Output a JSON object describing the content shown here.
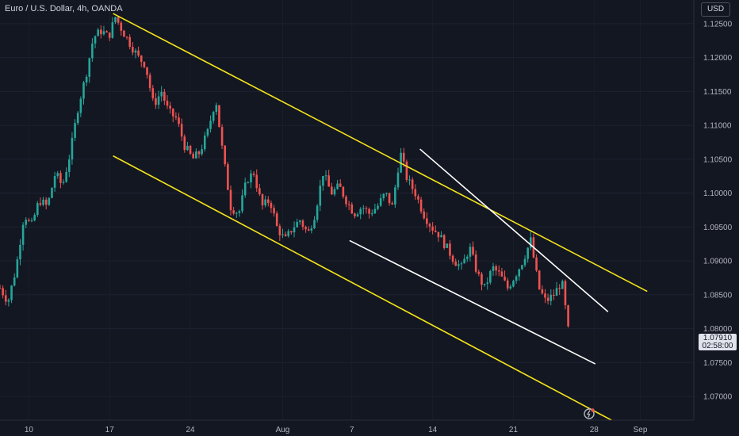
{
  "header": {
    "symbol_title": "Euro / U.S. Dollar, 4h, OANDA",
    "currency_button": "USD"
  },
  "price_label": {
    "price": "1.07910",
    "countdown": "02:58:00"
  },
  "colors": {
    "background": "#131722",
    "up_candle": "#26a69a",
    "down_candle": "#ef5350",
    "channel_line": "#f5e41a",
    "wedge_line": "#ffffff",
    "axis_text": "#b2b5be"
  },
  "chart_data": {
    "type": "candlestick",
    "title": "Euro / U.S. Dollar, 4h, OANDA",
    "y_axis": {
      "range": [
        1.0665,
        1.1285
      ],
      "ticks": [
        "1.12500",
        "1.12000",
        "1.11500",
        "1.11000",
        "1.10500",
        "1.10000",
        "1.09500",
        "1.09000",
        "1.08500",
        "1.08000",
        "1.07500",
        "1.07000"
      ]
    },
    "x_axis": {
      "range": [
        0,
        49.3
      ],
      "ticks": [
        {
          "label": "10",
          "x": 2.5
        },
        {
          "label": "17",
          "x": 9.5
        },
        {
          "label": "24",
          "x": 16.5
        },
        {
          "label": "Aug",
          "x": 24.5
        },
        {
          "label": "7",
          "x": 30.5
        },
        {
          "label": "14",
          "x": 37.5
        },
        {
          "label": "21",
          "x": 44.5
        },
        {
          "label": "28",
          "x": 51.5
        },
        {
          "label": "Sep",
          "x": 55.5
        }
      ]
    },
    "close_series": [
      [
        0,
        1.086
      ],
      [
        0.7,
        1.084
      ],
      [
        1.4,
        1.089
      ],
      [
        2.1,
        1.097
      ],
      [
        2.7,
        1.095
      ],
      [
        3.4,
        1.099
      ],
      [
        4.1,
        1.098
      ],
      [
        4.8,
        1.103
      ],
      [
        5.4,
        1.101
      ],
      [
        6.1,
        1.106
      ],
      [
        6.8,
        1.113
      ],
      [
        7.4,
        1.117
      ],
      [
        8.1,
        1.123
      ],
      [
        8.8,
        1.124
      ],
      [
        9.4,
        1.123
      ],
      [
        10.0,
        1.126
      ],
      [
        10.6,
        1.124
      ],
      [
        11.3,
        1.122
      ],
      [
        12.0,
        1.12
      ],
      [
        12.6,
        1.119
      ],
      [
        13.3,
        1.113
      ],
      [
        14.0,
        1.115
      ],
      [
        14.6,
        1.112
      ],
      [
        15.3,
        1.111
      ],
      [
        16.0,
        1.107
      ],
      [
        16.7,
        1.105
      ],
      [
        17.3,
        1.106
      ],
      [
        18.0,
        1.109
      ],
      [
        18.7,
        1.114
      ],
      [
        19.3,
        1.106
      ],
      [
        20.0,
        1.098
      ],
      [
        20.7,
        1.097
      ],
      [
        21.4,
        1.102
      ],
      [
        22.0,
        1.103
      ],
      [
        22.7,
        1.098
      ],
      [
        23.4,
        1.099
      ],
      [
        24.0,
        1.095
      ],
      [
        24.7,
        1.093
      ],
      [
        25.4,
        1.095
      ],
      [
        26.0,
        1.096
      ],
      [
        26.7,
        1.094
      ],
      [
        27.3,
        1.097
      ],
      [
        28.0,
        1.103
      ],
      [
        28.7,
        1.1
      ],
      [
        29.4,
        1.101
      ],
      [
        30.0,
        1.099
      ],
      [
        30.7,
        1.097
      ],
      [
        31.4,
        1.098
      ],
      [
        32.0,
        1.097
      ],
      [
        32.7,
        1.098
      ],
      [
        33.4,
        1.1
      ],
      [
        34.0,
        1.098
      ],
      [
        34.7,
        1.106
      ],
      [
        35.3,
        1.102
      ],
      [
        36.0,
        1.1
      ],
      [
        36.7,
        1.097
      ],
      [
        37.4,
        1.095
      ],
      [
        38.0,
        1.094
      ],
      [
        38.7,
        1.092
      ],
      [
        39.4,
        1.09
      ],
      [
        40.0,
        1.089
      ],
      [
        40.7,
        1.092
      ],
      [
        41.4,
        1.088
      ],
      [
        42.0,
        1.086
      ],
      [
        42.7,
        1.089
      ],
      [
        43.3,
        1.088
      ],
      [
        44.0,
        1.086
      ],
      [
        44.7,
        1.088
      ],
      [
        45.3,
        1.09
      ],
      [
        46.0,
        1.093
      ],
      [
        46.7,
        1.086
      ],
      [
        47.3,
        1.084
      ],
      [
        48.0,
        1.085
      ],
      [
        48.7,
        1.087
      ],
      [
        49.3,
        1.0791
      ]
    ],
    "drawings": [
      {
        "name": "channel-upper",
        "color": "#f5e41a",
        "points": [
          [
            9.8,
            1.1265
          ],
          [
            56.1,
            1.0855
          ]
        ]
      },
      {
        "name": "channel-lower",
        "color": "#f5e41a",
        "points": [
          [
            9.8,
            1.1055
          ],
          [
            53.0,
            1.0665
          ]
        ]
      },
      {
        "name": "wedge-upper",
        "color": "#ffffff",
        "points": [
          [
            36.4,
            1.1065
          ],
          [
            52.7,
            1.0825
          ]
        ]
      },
      {
        "name": "wedge-lower",
        "color": "#ffffff",
        "points": [
          [
            30.3,
            1.093
          ],
          [
            51.6,
            1.0748
          ]
        ]
      }
    ],
    "last_price": 1.0791
  }
}
